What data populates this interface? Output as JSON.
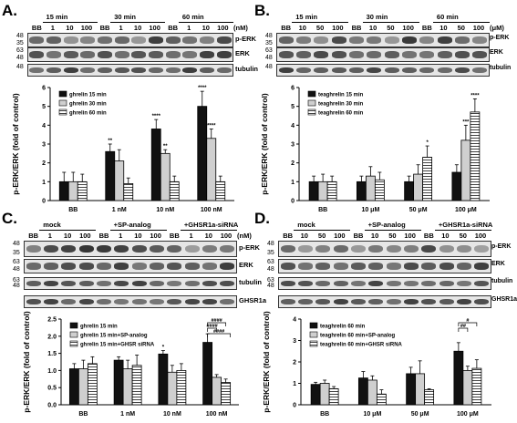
{
  "panels": [
    {
      "id": "A",
      "label": "A.",
      "groups": [
        "15 min",
        "30 min",
        "60 min"
      ],
      "lanes": [
        "BB",
        "1",
        "10",
        "100",
        "BB",
        "1",
        "10",
        "100",
        "BB",
        "1",
        "10",
        "100"
      ],
      "unit": "(nM)",
      "blots": [
        "p-ERK",
        "ERK",
        "tubulin"
      ],
      "mw": [
        "48",
        "35",
        "63",
        "48",
        "48"
      ]
    },
    {
      "id": "B",
      "label": "B.",
      "groups": [
        "15 min",
        "30 min",
        "60 min"
      ],
      "lanes": [
        "BB",
        "10",
        "50",
        "100",
        "BB",
        "10",
        "50",
        "100",
        "BB",
        "10",
        "50",
        "100"
      ],
      "unit": "(μM)",
      "blots": [
        "p-ERK",
        "ERK",
        "tubulin"
      ],
      "mw": [
        "48",
        "35",
        "63",
        "48",
        "48"
      ]
    },
    {
      "id": "C",
      "label": "C.",
      "groups": [
        "mock",
        "+SP-analog",
        "+GHSR1a-siRNA"
      ],
      "lanes": [
        "BB",
        "1",
        "10",
        "100",
        "BB",
        "1",
        "10",
        "100",
        "BB",
        "1",
        "10",
        "100"
      ],
      "unit": "(nM)",
      "blots": [
        "p-ERK",
        "ERK",
        "tubulin",
        "GHSR1a"
      ],
      "mw": [
        "48",
        "35",
        "63",
        "48",
        "63",
        "48"
      ]
    },
    {
      "id": "D",
      "label": "D.",
      "groups": [
        "mock",
        "+SP-analog",
        "+GHSR1a-siRNA"
      ],
      "lanes": [
        "BB",
        "10",
        "50",
        "100",
        "BB",
        "10",
        "50",
        "100",
        "BB",
        "10",
        "50",
        "100"
      ],
      "unit": "",
      "blots": [
        "p-ERK",
        "ERK",
        "tubulin",
        "GHSR1a"
      ],
      "mw": [
        "48",
        "35",
        "63",
        "48",
        "63",
        "48"
      ]
    }
  ],
  "chart_data": [
    {
      "type": "bar",
      "panel": "A",
      "ylabel": "p-ERK/ERK (fold of control)",
      "ylim": [
        0,
        6
      ],
      "yticks": [
        "0",
        "1",
        "2",
        "3",
        "4",
        "5",
        "6"
      ],
      "categories": [
        "BB",
        "1 nM",
        "10 nM",
        "100 nM"
      ],
      "series": [
        {
          "name": "ghrelin 15 min",
          "values": [
            1.0,
            2.6,
            3.8,
            5.0
          ],
          "errors": [
            0.5,
            0.4,
            0.5,
            0.8
          ],
          "sig": [
            "",
            "**",
            "****",
            "****"
          ]
        },
        {
          "name": "ghrelin 30 min",
          "values": [
            1.0,
            2.1,
            2.5,
            3.3
          ],
          "errors": [
            0.5,
            0.6,
            0.2,
            0.5
          ],
          "sig": [
            "",
            "",
            "**",
            "****"
          ]
        },
        {
          "name": "ghrelin 60 min",
          "values": [
            1.0,
            0.9,
            1.0,
            1.0
          ],
          "errors": [
            0.4,
            0.3,
            0.3,
            0.3
          ],
          "sig": [
            "",
            "",
            "",
            ""
          ]
        }
      ]
    },
    {
      "type": "bar",
      "panel": "B",
      "ylabel": "p-ERK/ERK (fold of control)",
      "ylim": [
        0,
        6
      ],
      "yticks": [
        "0",
        "1",
        "2",
        "3",
        "4",
        "5",
        "6"
      ],
      "categories": [
        "BB",
        "10 μM",
        "50 μM",
        "100 μM"
      ],
      "series": [
        {
          "name": "teaghrelin 15 min",
          "values": [
            1.0,
            1.0,
            1.0,
            1.5
          ],
          "errors": [
            0.3,
            0.3,
            0.3,
            0.4
          ],
          "sig": [
            "",
            "",
            "",
            ""
          ]
        },
        {
          "name": "teaghrelin 30 min",
          "values": [
            1.0,
            1.3,
            1.4,
            3.2
          ],
          "errors": [
            0.4,
            0.5,
            0.5,
            0.8
          ],
          "sig": [
            "",
            "",
            "",
            "***"
          ]
        },
        {
          "name": "teaghrelin 60 min",
          "values": [
            1.0,
            1.1,
            2.3,
            4.7
          ],
          "errors": [
            0.3,
            0.4,
            0.6,
            0.7
          ],
          "sig": [
            "",
            "",
            "*",
            "****"
          ]
        }
      ]
    },
    {
      "type": "bar",
      "panel": "C",
      "ylabel": "p-ERK/ERK (fold of control)",
      "ylim": [
        0.0,
        2.5
      ],
      "yticks": [
        "0.0",
        "0.5",
        "1.0",
        "1.5",
        "2.0",
        "2.5"
      ],
      "categories": [
        "BB",
        "1 nM",
        "10 nM",
        "100 nM"
      ],
      "series": [
        {
          "name": "ghrelin 15 min",
          "values": [
            1.05,
            1.3,
            1.48,
            1.82
          ],
          "errors": [
            0.15,
            0.1,
            0.1,
            0.25
          ],
          "sig": [
            "",
            "",
            "*",
            ""
          ]
        },
        {
          "name": "ghrelin 15 min+SP-analog",
          "values": [
            1.05,
            1.05,
            0.95,
            0.8
          ],
          "errors": [
            0.25,
            0.25,
            0.2,
            0.08
          ],
          "sig": [
            "",
            "",
            "",
            ""
          ]
        },
        {
          "name": "ghrelin 15 min+GHSR siRNA",
          "values": [
            1.2,
            1.15,
            1.0,
            0.65
          ],
          "errors": [
            0.2,
            0.3,
            0.2,
            0.1
          ],
          "sig": [
            "",
            "",
            "",
            ""
          ]
        }
      ],
      "brackets": [
        "####",
        "####",
        "####"
      ]
    },
    {
      "type": "bar",
      "panel": "D",
      "ylabel": "p-ERK/ERK (fold of control)",
      "ylim": [
        0,
        4
      ],
      "yticks": [
        "0",
        "1",
        "2",
        "3",
        "4"
      ],
      "categories": [
        "BB",
        "10 μM",
        "50 μM",
        "100 μM"
      ],
      "series": [
        {
          "name": "teaghrelin 60 min",
          "values": [
            0.95,
            1.25,
            1.45,
            2.5
          ],
          "errors": [
            0.1,
            0.3,
            0.3,
            0.4
          ],
          "sig": [
            "",
            "",
            "",
            ""
          ]
        },
        {
          "name": "teaghrelin 60 min+SP-analog",
          "values": [
            1.0,
            1.15,
            1.45,
            1.6
          ],
          "errors": [
            0.15,
            0.2,
            0.6,
            0.2
          ],
          "sig": [
            "",
            "",
            "",
            ""
          ]
        },
        {
          "name": "teaghrelin 60 min+GHSR siRNA",
          "values": [
            0.75,
            0.5,
            0.7,
            1.7
          ],
          "errors": [
            0.1,
            0.2,
            0.05,
            0.4
          ],
          "sig": [
            "",
            "",
            "",
            ""
          ]
        }
      ],
      "brackets": [
        "#",
        "##"
      ]
    }
  ]
}
